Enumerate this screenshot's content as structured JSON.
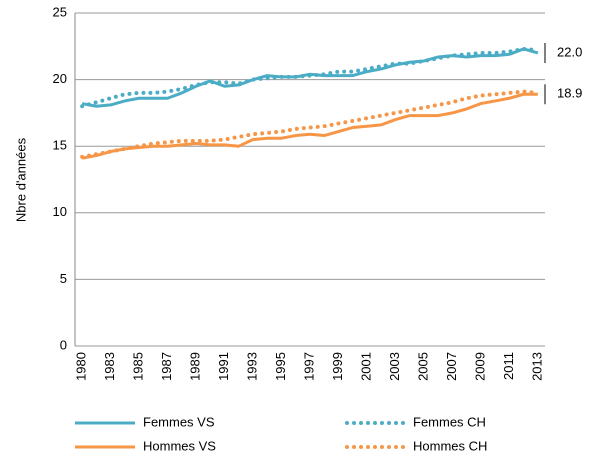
{
  "chart_data": {
    "type": "line",
    "y_label": "Nbre d'années",
    "categories": [
      "1980",
      null,
      "1983",
      null,
      "1985",
      null,
      "1987",
      null,
      "1989",
      null,
      "1991",
      null,
      "1993",
      null,
      "1995",
      null,
      "1997",
      null,
      "1999",
      null,
      "2001",
      null,
      "2003",
      null,
      "2005",
      null,
      "2007",
      null,
      "2009",
      null,
      "2011",
      null,
      "2013"
    ],
    "ylim": [
      0,
      25
    ],
    "yticks": [
      0,
      5,
      10,
      15,
      20,
      25
    ],
    "grid": true,
    "series": [
      {
        "name": "Femmes VS",
        "color": "#4bacc6",
        "style": "solid",
        "values": [
          18.2,
          18.0,
          18.1,
          18.4,
          18.6,
          18.6,
          18.6,
          19.0,
          19.5,
          19.9,
          19.5,
          19.6,
          20.0,
          20.3,
          20.2,
          20.2,
          20.4,
          20.3,
          20.3,
          20.3,
          20.6,
          20.8,
          21.1,
          21.3,
          21.4,
          21.7,
          21.8,
          21.7,
          21.8,
          21.8,
          21.9,
          22.3,
          22.0
        ],
        "value_labels": [
          null,
          null,
          null,
          null,
          null,
          null,
          null,
          null,
          null,
          null,
          null,
          null,
          null,
          null,
          null,
          null,
          null,
          null,
          null,
          null,
          null,
          null,
          null,
          null,
          null,
          null,
          null,
          null,
          null,
          null,
          null,
          null,
          "22.0"
        ]
      },
      {
        "name": "Femmes CH",
        "color": "#4bacc6",
        "style": "dotted",
        "values": [
          18.0,
          18.3,
          18.6,
          18.9,
          19.0,
          19.0,
          19.1,
          19.3,
          19.6,
          19.8,
          19.8,
          19.7,
          20.0,
          20.1,
          20.2,
          20.2,
          20.3,
          20.4,
          20.6,
          20.6,
          20.8,
          21.0,
          21.2,
          21.2,
          21.4,
          21.6,
          21.8,
          21.9,
          22.0,
          22.0,
          22.1,
          22.3,
          22.2
        ]
      },
      {
        "name": "Hommes VS",
        "color": "#f79646",
        "style": "solid",
        "values": [
          14.1,
          14.3,
          14.6,
          14.8,
          14.9,
          15.0,
          15.0,
          15.1,
          15.2,
          15.1,
          15.1,
          15.0,
          15.5,
          15.6,
          15.6,
          15.8,
          15.9,
          15.8,
          16.1,
          16.4,
          16.5,
          16.6,
          17.0,
          17.3,
          17.3,
          17.3,
          17.5,
          17.8,
          18.2,
          18.4,
          18.6,
          18.9,
          18.9
        ],
        "value_labels": [
          null,
          null,
          null,
          null,
          null,
          null,
          null,
          null,
          null,
          null,
          null,
          null,
          null,
          null,
          null,
          null,
          null,
          null,
          null,
          null,
          null,
          null,
          null,
          null,
          null,
          null,
          null,
          null,
          null,
          null,
          null,
          null,
          "18.9"
        ]
      },
      {
        "name": "Hommes CH",
        "color": "#f79646",
        "style": "dotted",
        "values": [
          14.2,
          14.4,
          14.6,
          14.8,
          15.0,
          15.2,
          15.3,
          15.4,
          15.4,
          15.4,
          15.5,
          15.7,
          15.9,
          16.0,
          16.1,
          16.3,
          16.4,
          16.5,
          16.7,
          16.9,
          17.1,
          17.3,
          17.5,
          17.7,
          17.9,
          18.1,
          18.3,
          18.6,
          18.8,
          18.9,
          19.0,
          19.1,
          19.0
        ]
      }
    ]
  }
}
